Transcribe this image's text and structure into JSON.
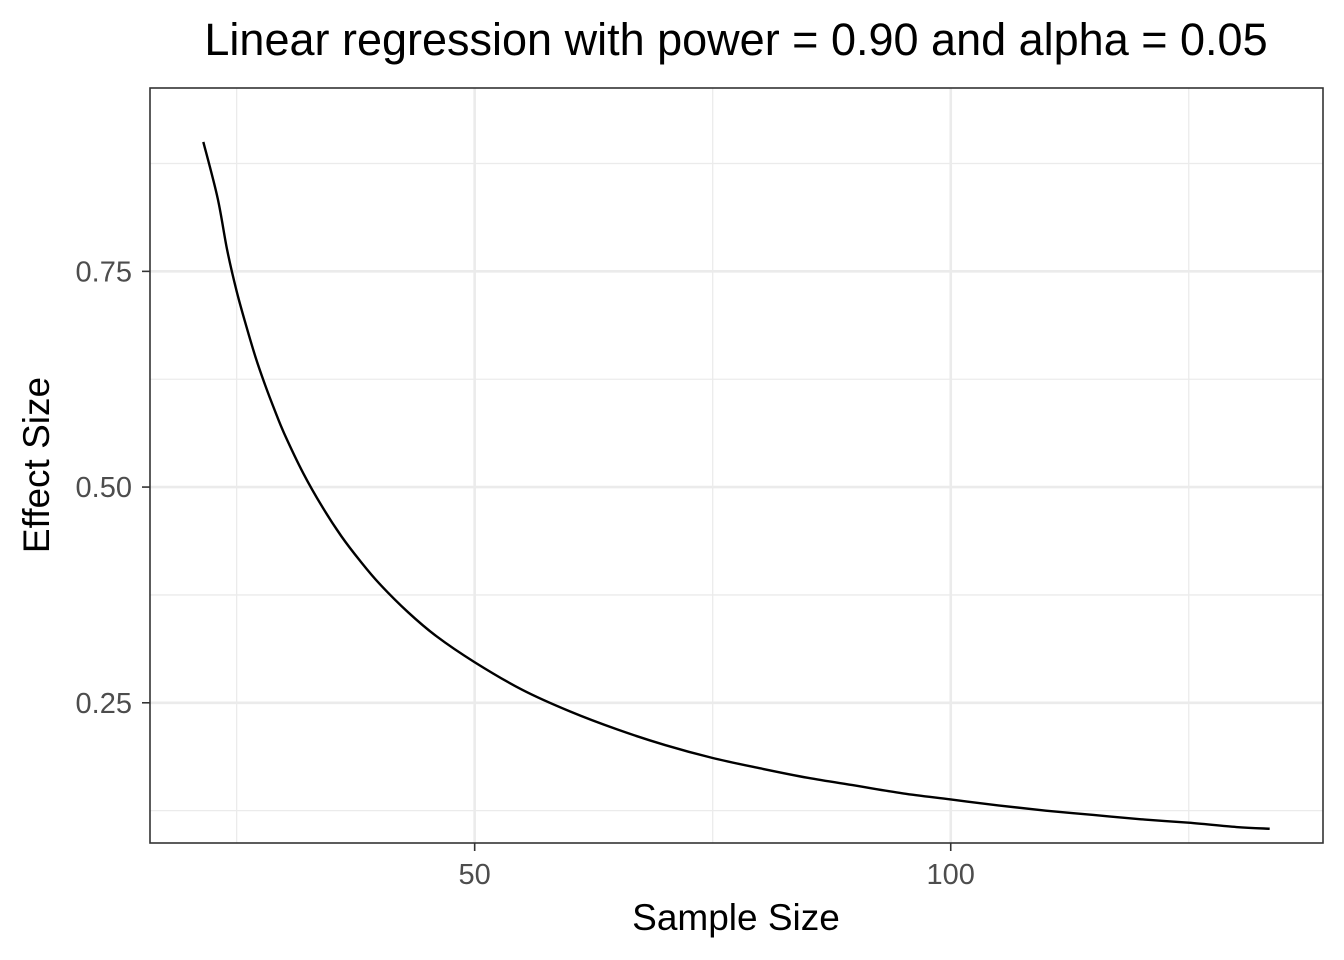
{
  "chart_data": {
    "type": "line",
    "title": "Linear regression with power = 0.90 and alpha = 0.05",
    "xlabel": "Sample Size",
    "ylabel": "Effect Size",
    "xlim": [
      15.9,
      139.1
    ],
    "ylim": [
      0.0875,
      0.9625
    ],
    "x_major_ticks": [
      50,
      100
    ],
    "x_minor_ticks": [
      25,
      75,
      125
    ],
    "y_major_ticks": [
      0.25,
      0.5,
      0.75
    ],
    "y_minor_ticks": [
      0.125,
      0.375,
      0.625,
      0.875
    ],
    "x_tick_labels": [
      "50",
      "100"
    ],
    "y_tick_labels": [
      "0.25",
      "0.50",
      "0.75"
    ],
    "grid": true,
    "legend": "none",
    "colors": {
      "line": "#000000",
      "grid": "#ebebeb",
      "panel_border": "#333333",
      "tick_label": "#4d4d4d",
      "background": "#ffffff"
    },
    "series": [
      {
        "x": [
          21.5,
          23,
          24,
          25,
          26,
          27,
          28,
          29,
          30,
          32,
          34,
          36,
          38,
          40,
          43,
          46,
          50,
          55,
          60,
          65,
          70,
          75,
          80,
          85,
          90,
          95,
          100,
          105,
          110,
          115,
          120,
          125,
          130,
          133.5
        ],
        "y": [
          0.9,
          0.835,
          0.775,
          0.727,
          0.687,
          0.65,
          0.618,
          0.589,
          0.562,
          0.516,
          0.477,
          0.443,
          0.414,
          0.388,
          0.355,
          0.327,
          0.297,
          0.265,
          0.24,
          0.219,
          0.201,
          0.186,
          0.174,
          0.163,
          0.154,
          0.145,
          0.138,
          0.131,
          0.125,
          0.12,
          0.115,
          0.111,
          0.106,
          0.104
        ]
      }
    ]
  }
}
